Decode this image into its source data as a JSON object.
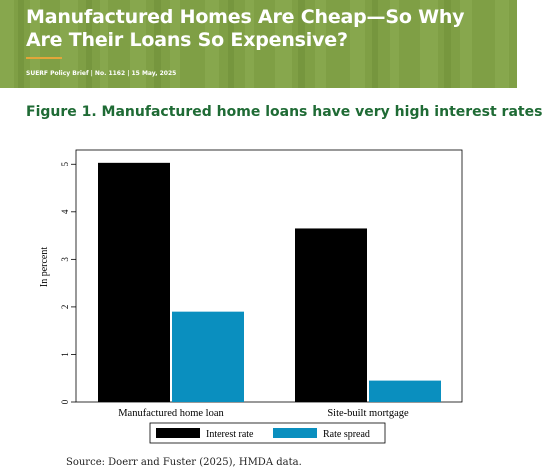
{
  "banner": {
    "title": "Manufactured Homes Are Cheap—So Why Are Their Loans So Expensive?",
    "meta": "SUERF Policy Brief | No. 1162 | 15 May, 2025",
    "colors": {
      "background": "#7f9f45",
      "rule": "#e2a63a"
    }
  },
  "figure_title": "Figure 1. Manufactured home loans have very high interest rates",
  "source": "Source: Doerr and Fuster (2025), HMDA data.",
  "chart_data": {
    "type": "bar",
    "categories": [
      "Manufactured home loan",
      "Site-built mortgage"
    ],
    "series": [
      {
        "name": "Interest rate",
        "values": [
          5.03,
          3.65
        ],
        "color": "#000000"
      },
      {
        "name": "Rate spread",
        "values": [
          1.9,
          0.45
        ],
        "color": "#0a8fbf"
      }
    ],
    "ylabel": "In percent",
    "ylim": [
      0,
      5.3
    ],
    "yticks": [
      0,
      1,
      2,
      3,
      4,
      5
    ],
    "legend_position": "bottom",
    "grid": false
  }
}
